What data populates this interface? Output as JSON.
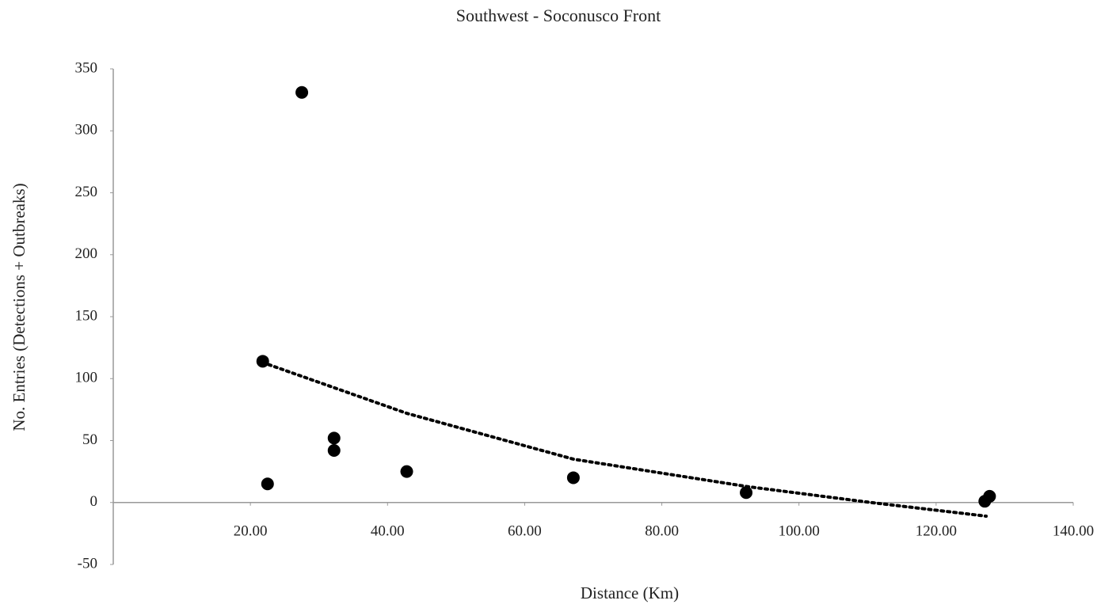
{
  "chart_data": {
    "type": "scatter",
    "title": "Southwest - Soconusco Front",
    "x_label": "Distance (Km)",
    "y_label": "No. Entries (Detections + Outbreaks)",
    "x": [
      21.8,
      22.5,
      27.5,
      32.2,
      32.2,
      42.8,
      67.1,
      92.3,
      127.1,
      127.8
    ],
    "values": [
      114,
      15,
      331,
      52,
      42,
      25,
      20,
      8,
      1,
      5
    ],
    "color": "#000000",
    "trendline": {
      "x": [
        21.8,
        42.8,
        67.1,
        92.3,
        110.5,
        127.3
      ],
      "values": [
        113,
        72,
        35,
        13,
        0,
        -11
      ],
      "color": "#000000"
    },
    "xlim": [
      0,
      140
    ],
    "ylim": [
      -50,
      350
    ],
    "xticks": [
      {
        "value": 20,
        "label": "20.00"
      },
      {
        "value": 40,
        "label": "40.00"
      },
      {
        "value": 60,
        "label": "60.00"
      },
      {
        "value": 80,
        "label": "80.00"
      },
      {
        "value": 100,
        "label": "100.00"
      },
      {
        "value": 120,
        "label": "120.00"
      },
      {
        "value": 140,
        "label": "140.00"
      }
    ],
    "yticks": [
      -50,
      0,
      50,
      100,
      150,
      200,
      250,
      300,
      350
    ],
    "grid": false
  }
}
